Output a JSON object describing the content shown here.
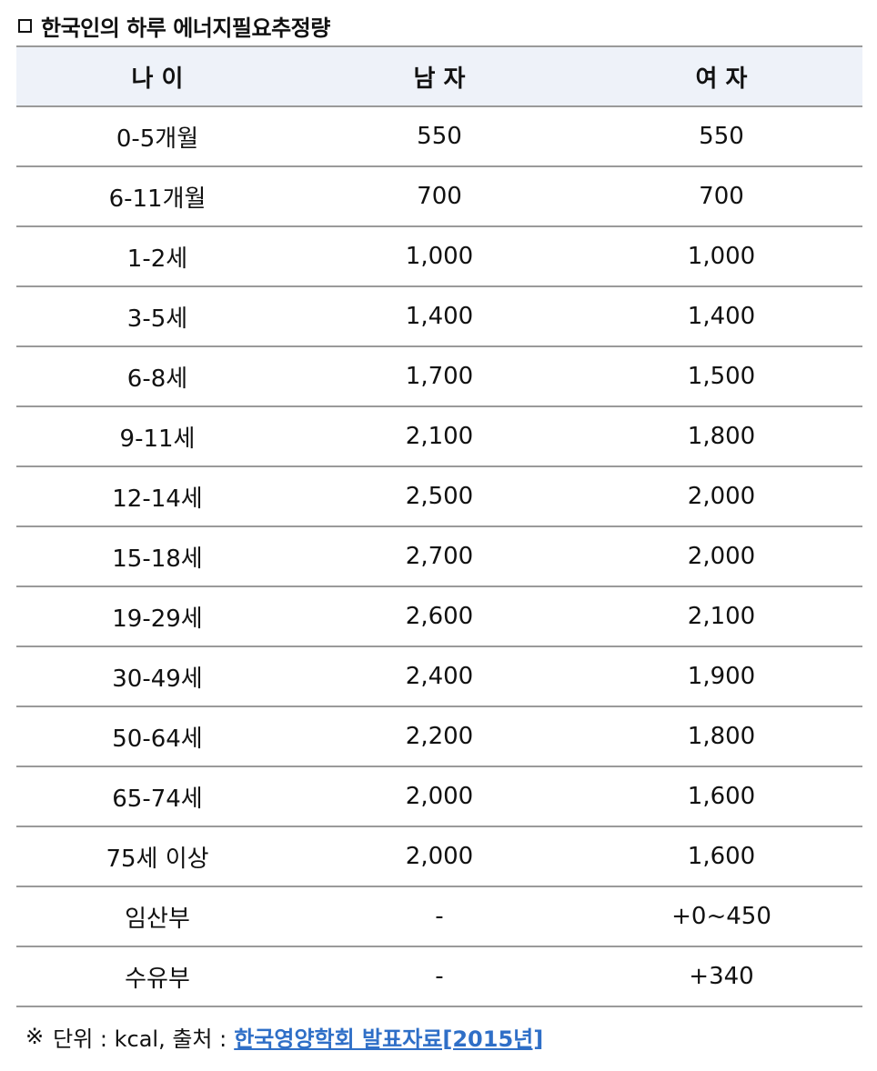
{
  "title": "한국인의 하루 에너지필요추정량",
  "table": {
    "headers": [
      "나 이",
      "남 자",
      "여 자"
    ],
    "rows": [
      [
        "0-5개월",
        "550",
        "550"
      ],
      [
        "6-11개월",
        "700",
        "700"
      ],
      [
        "1-2세",
        "1,000",
        "1,000"
      ],
      [
        "3-5세",
        "1,400",
        "1,400"
      ],
      [
        "6-8세",
        "1,700",
        "1,500"
      ],
      [
        "9-11세",
        "2,100",
        "1,800"
      ],
      [
        "12-14세",
        "2,500",
        "2,000"
      ],
      [
        "15-18세",
        "2,700",
        "2,000"
      ],
      [
        "19-29세",
        "2,600",
        "2,100"
      ],
      [
        "30-49세",
        "2,400",
        "1,900"
      ],
      [
        "50-64세",
        "2,200",
        "1,800"
      ],
      [
        "65-74세",
        "2,000",
        "1,600"
      ],
      [
        "75세 이상",
        "2,000",
        "1,600"
      ],
      [
        "임산부",
        "-",
        "+0~450"
      ],
      [
        "수유부",
        "-",
        "+340"
      ]
    ]
  },
  "footnote": {
    "mark": "※",
    "text": "단위 : kcal, 출처 :",
    "link_text": "한국영양학회 발표자료[2015년]",
    "link_color": "#2f6fc7"
  },
  "colors": {
    "header_bg": "#eef2f9",
    "border": "#9a9a9a"
  }
}
